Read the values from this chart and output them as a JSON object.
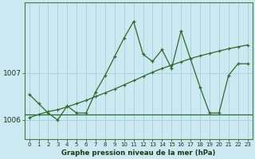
{
  "x": [
    0,
    1,
    2,
    3,
    4,
    5,
    6,
    7,
    8,
    9,
    10,
    11,
    12,
    13,
    14,
    15,
    16,
    17,
    18,
    19,
    20,
    21,
    22,
    23
  ],
  "y_main": [
    1006.55,
    1006.35,
    1006.15,
    1006.0,
    1006.3,
    1006.15,
    1006.15,
    1006.6,
    1006.95,
    1007.35,
    1007.75,
    1008.1,
    1007.4,
    1007.25,
    1007.5,
    1007.1,
    1007.9,
    1007.3,
    1006.7,
    1006.15,
    1006.15,
    1006.95,
    1007.2,
    1007.2
  ],
  "y_trend": [
    1006.05,
    1006.12,
    1006.18,
    1006.22,
    1006.28,
    1006.35,
    1006.42,
    1006.5,
    1006.58,
    1006.66,
    1006.75,
    1006.84,
    1006.93,
    1007.02,
    1007.1,
    1007.17,
    1007.24,
    1007.31,
    1007.37,
    1007.42,
    1007.47,
    1007.52,
    1007.56,
    1007.6
  ],
  "y_hline": 1006.12,
  "line_color": "#2d6a2d",
  "bg_color": "#cce8f0",
  "grid_color": "#99ccd9",
  "yticks": [
    1006,
    1007
  ],
  "ylim": [
    1005.6,
    1008.5
  ],
  "xlabel": "Graphe pression niveau de la mer (hPa)",
  "xlim": [
    -0.5,
    23.5
  ],
  "tick_fontsize": 5.0,
  "xlabel_fontsize": 6.2
}
